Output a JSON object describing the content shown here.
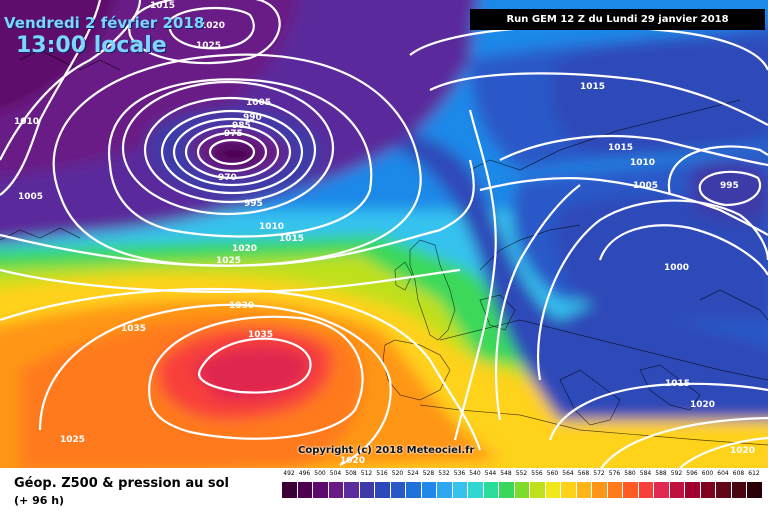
{
  "header": {
    "date": "Vendredi 2 février 2018",
    "time": "13:00 locale",
    "run": "Run GEM 12 Z du Lundi 29 janvier 2018"
  },
  "footer": {
    "title": "Géop. Z500 & pression au sol",
    "lead": "(+ 96 h)",
    "copyright": "Copyright (c) 2018 Meteociel.fr"
  },
  "legend": {
    "values": [
      492,
      496,
      500,
      504,
      508,
      512,
      516,
      520,
      524,
      528,
      532,
      536,
      540,
      544,
      548,
      552,
      556,
      560,
      564,
      568,
      572,
      576,
      580,
      584,
      588,
      592,
      596,
      600,
      604,
      608,
      612
    ],
    "colors": [
      "#3b0038",
      "#4d0050",
      "#5e0a6c",
      "#6a1a86",
      "#5a2c9c",
      "#3e3aa8",
      "#2d48b8",
      "#2a58c8",
      "#1f70d8",
      "#1f88e8",
      "#2fa6f0",
      "#35c2ef",
      "#30d6d0",
      "#2adc9a",
      "#3ad85a",
      "#7ddc2a",
      "#bfe01a",
      "#f0e81a",
      "#ffd21a",
      "#ffb418",
      "#ff9618",
      "#ff7a1a",
      "#ff5a24",
      "#f8403a",
      "#e02850",
      "#c01040",
      "#a00030",
      "#800020",
      "#600818",
      "#480410",
      "#2a0008"
    ]
  },
  "pressure_labels": [
    "1015",
    "1020",
    "1025",
    "1010",
    "1005",
    "1005",
    "990",
    "985",
    "975",
    "970",
    "995",
    "1010",
    "1015",
    "1020",
    "1025",
    "1030",
    "1035",
    "1035",
    "1025",
    "1020",
    "1015",
    "1015",
    "1010",
    "1005",
    "995",
    "1000",
    "1015",
    "1020",
    "1020"
  ]
}
